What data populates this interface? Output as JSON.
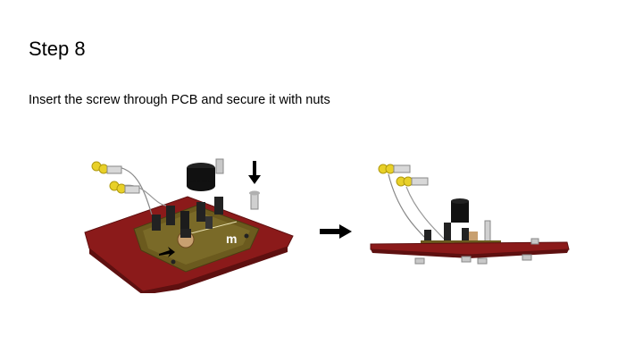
{
  "slide": {
    "title": "Step 8",
    "instruction": "Insert the screw through PCB and secure it with nuts",
    "pcb_marking": "m"
  },
  "colors": {
    "board_red": "#8b1a1a",
    "board_dark": "#5e1010",
    "pcb_olive": "#6b5a1e",
    "connector_yellow": "#e8d028",
    "arrow_black": "#000000"
  },
  "icons": {
    "down_arrow": "down-arrow-icon",
    "right_arrow": "right-arrow-icon"
  }
}
